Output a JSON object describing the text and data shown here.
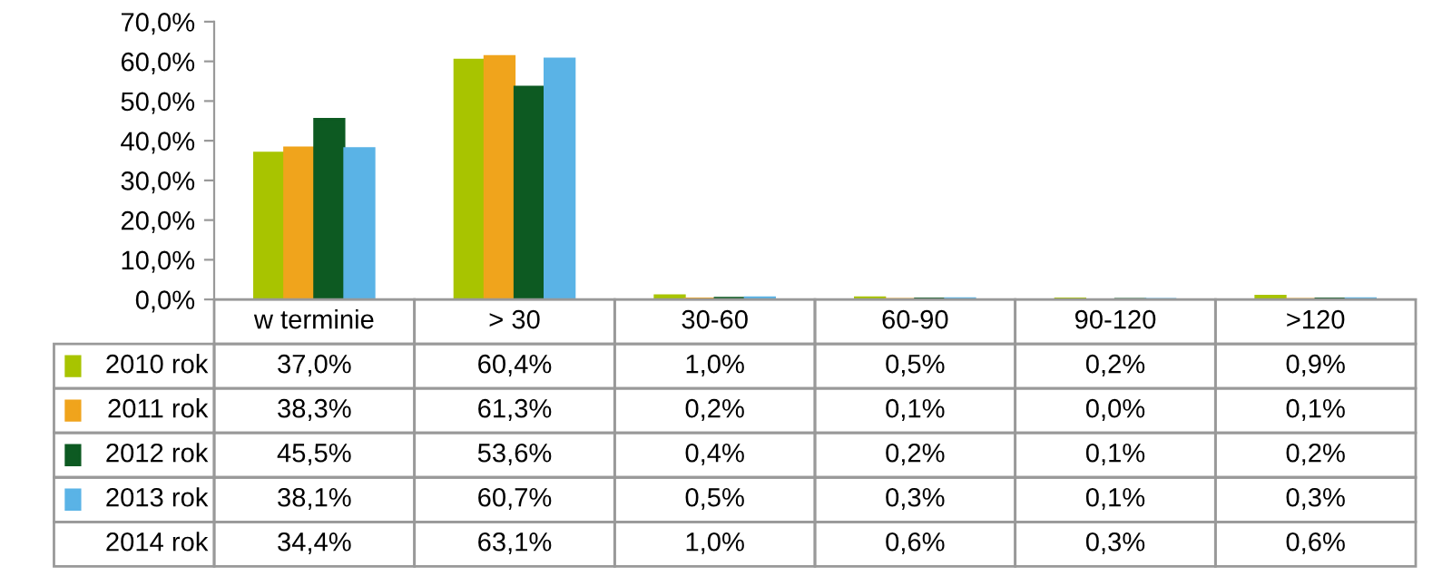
{
  "chart_data": {
    "type": "bar",
    "categories": [
      "w terminie",
      "> 30",
      "30-60",
      "60-90",
      "90-120",
      ">120"
    ],
    "series": [
      {
        "name": "2010 rok",
        "color": "#a8c400",
        "values": [
          37.0,
          60.4,
          1.0,
          0.5,
          0.2,
          0.9
        ],
        "value_labels": [
          "37,0%",
          "60,4%",
          "1,0%",
          "0,5%",
          "0,2%",
          "0,9%"
        ]
      },
      {
        "name": "2011 rok",
        "color": "#f0a41c",
        "values": [
          38.3,
          61.3,
          0.2,
          0.1,
          0.0,
          0.1
        ],
        "value_labels": [
          "38,3%",
          "61,3%",
          "0,2%",
          "0,1%",
          "0,0%",
          "0,1%"
        ]
      },
      {
        "name": "2012 rok",
        "color": "#0d5a22",
        "values": [
          45.5,
          53.6,
          0.4,
          0.2,
          0.1,
          0.2
        ],
        "value_labels": [
          "45,5%",
          "53,6%",
          "0,4%",
          "0,2%",
          "0,1%",
          "0,2%"
        ]
      },
      {
        "name": "2013 rok",
        "color": "#5ab3e6",
        "values": [
          38.1,
          60.7,
          0.5,
          0.3,
          0.1,
          0.3
        ],
        "value_labels": [
          "38,1%",
          "60,7%",
          "0,5%",
          "0,3%",
          "0,1%",
          "0,3%"
        ]
      },
      {
        "name": "2014 rok",
        "color": null,
        "values": [
          null,
          null,
          null,
          null,
          null,
          null
        ],
        "value_labels": [
          "34,4%",
          "63,1%",
          "1,0%",
          "0,6%",
          "0,3%",
          "0,6%"
        ]
      }
    ],
    "ylim": [
      0,
      70
    ],
    "yticks": [
      {
        "value": 0,
        "label": "0,0%"
      },
      {
        "value": 10,
        "label": "10,0%"
      },
      {
        "value": 20,
        "label": "20,0%"
      },
      {
        "value": 30,
        "label": "30,0%"
      },
      {
        "value": 40,
        "label": "40,0%"
      },
      {
        "value": 50,
        "label": "50,0%"
      },
      {
        "value": 60,
        "label": "60,0%"
      },
      {
        "value": 70,
        "label": "70,0%"
      }
    ],
    "grid": false,
    "legend": "bottom"
  }
}
